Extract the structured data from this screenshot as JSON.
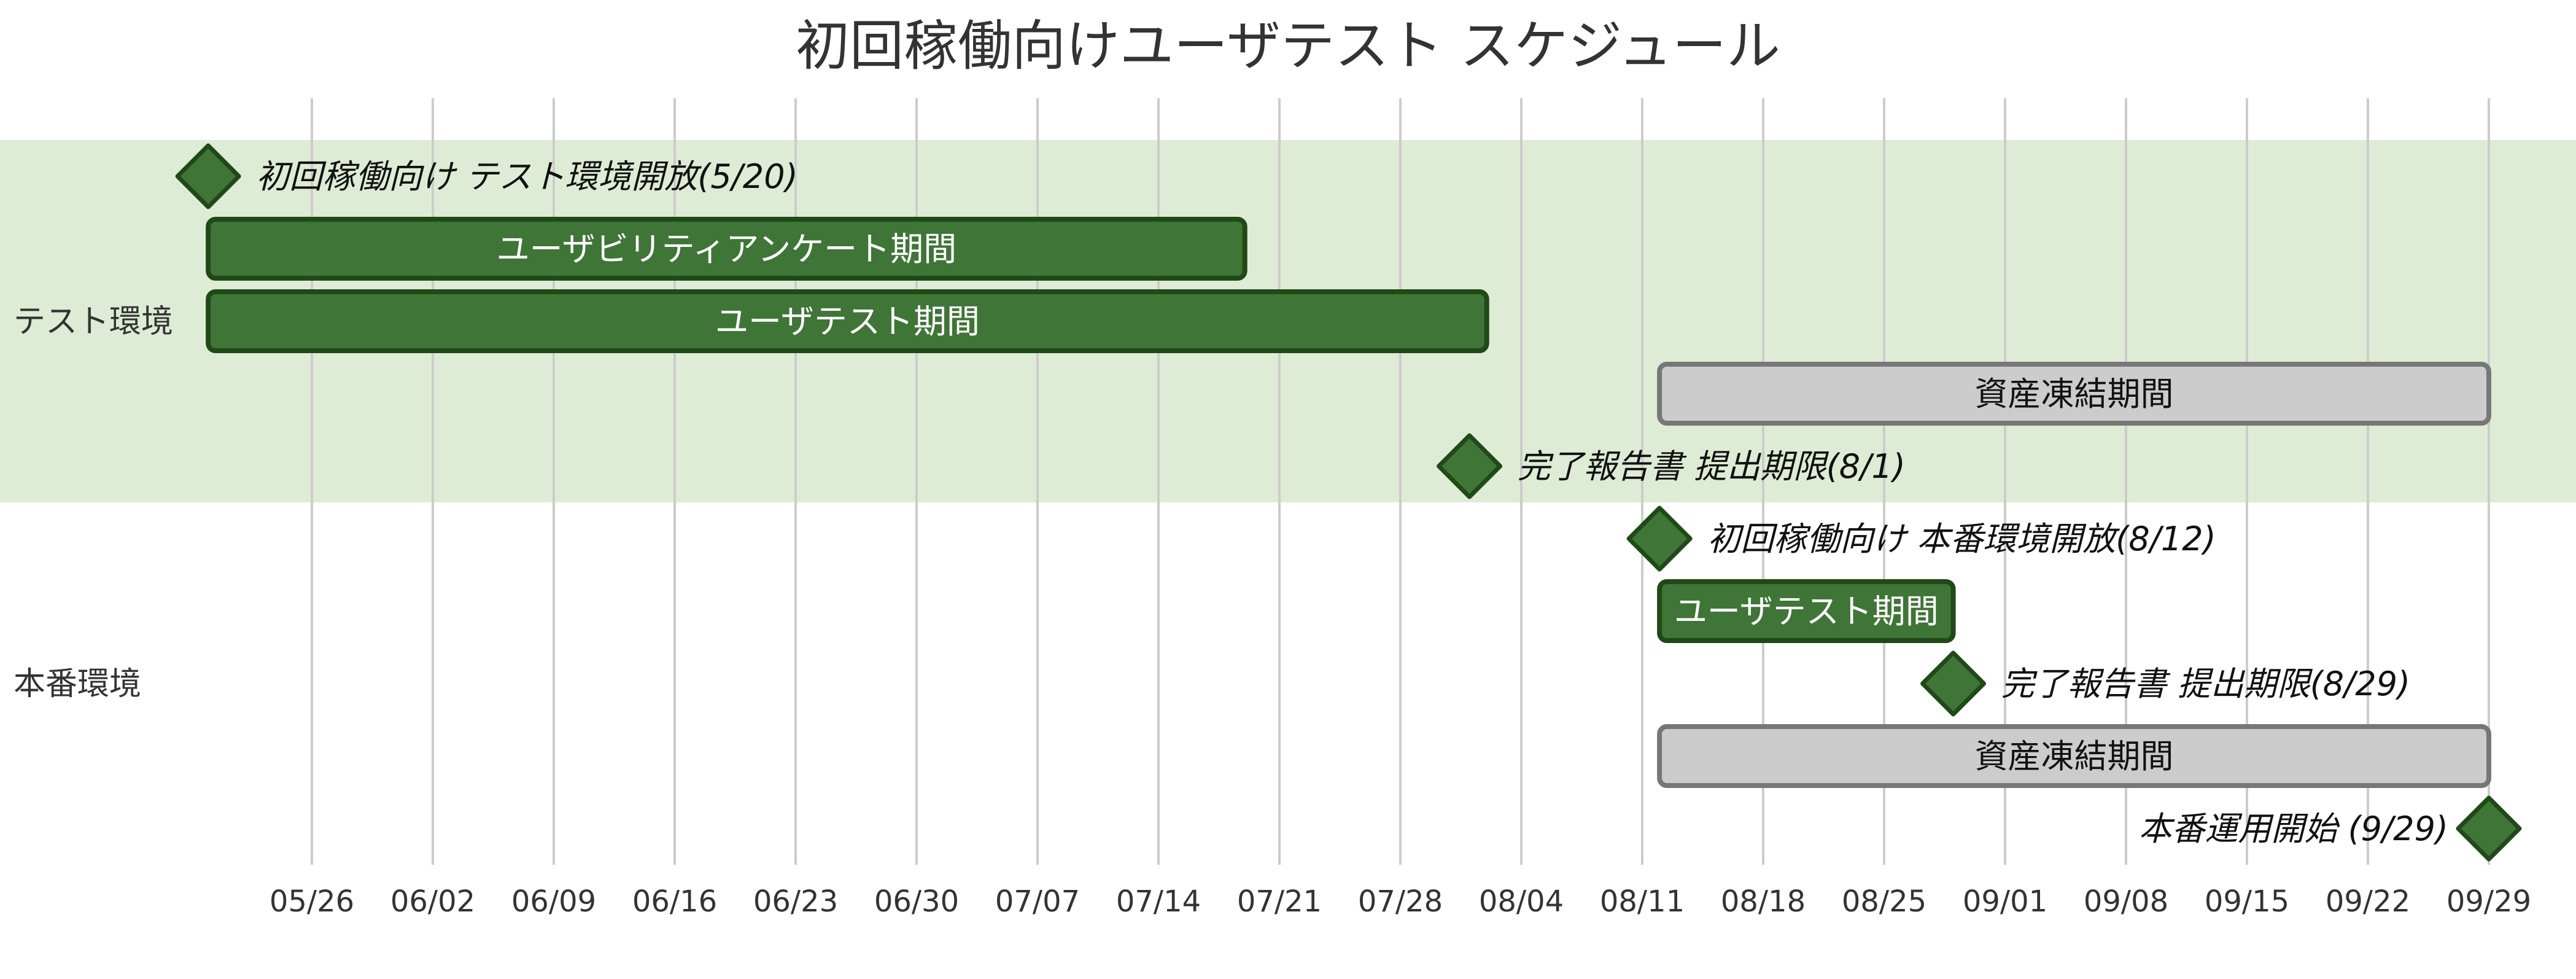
{
  "chart_data": {
    "type": "gantt",
    "title": "初回稼働向けユーザテスト スケジュール",
    "x_axis": {
      "type": "date",
      "ticks": [
        "05/26",
        "06/02",
        "06/09",
        "06/16",
        "06/23",
        "06/30",
        "07/07",
        "07/14",
        "07/21",
        "07/28",
        "08/04",
        "08/11",
        "08/18",
        "08/25",
        "09/01",
        "09/08",
        "09/15",
        "09/22",
        "09/29"
      ],
      "grid": true
    },
    "colors": {
      "active_fill": "#3f7537",
      "active_stroke": "#1f4a18",
      "done_fill": "#cccccc",
      "done_stroke": "#777777",
      "section_band": "#dfecd5"
    },
    "sections": [
      {
        "name": "テスト環境",
        "tasks": [
          {
            "label": "初回稼働向け テスト環境開放(5/20)",
            "type": "milestone",
            "date": "2025-05-20"
          },
          {
            "label": "ユーザビリティアンケート期間",
            "type": "task",
            "status": "active",
            "start": "2025-05-20",
            "end": "2025-07-19"
          },
          {
            "label": "ユーザテスト期間",
            "type": "task",
            "status": "active",
            "start": "2025-05-20",
            "end": "2025-08-02"
          },
          {
            "label": "資産凍結期間",
            "type": "task",
            "status": "done",
            "start": "2025-08-12",
            "end": "2025-09-29"
          },
          {
            "label": "完了報告書 提出期限(8/1)",
            "type": "milestone",
            "date": "2025-08-01"
          }
        ]
      },
      {
        "name": "本番環境",
        "tasks": [
          {
            "label": "初回稼働向け 本番環境開放(8/12)",
            "type": "milestone",
            "date": "2025-08-12"
          },
          {
            "label": "ユーザテスト期間",
            "type": "task",
            "status": "active",
            "start": "2025-08-12",
            "end": "2025-08-29"
          },
          {
            "label": "完了報告書 提出期限(8/29)",
            "type": "milestone",
            "date": "2025-08-29"
          },
          {
            "label": "資産凍結期間",
            "type": "task",
            "status": "done",
            "start": "2025-08-12",
            "end": "2025-09-29"
          },
          {
            "label": "本番運用開始 (9/29)",
            "type": "milestone",
            "date": "2025-09-29",
            "label_side": "left"
          }
        ]
      }
    ]
  }
}
